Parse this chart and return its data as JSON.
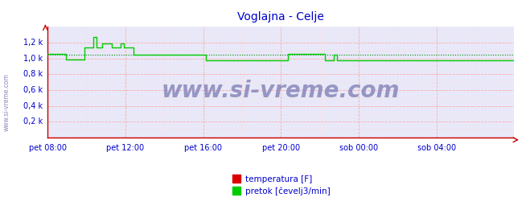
{
  "title": "Voglajna - Celje",
  "title_color": "#0000cc",
  "background_color": "#ffffff",
  "plot_bg_color": "#e8e8f8",
  "grid_color": "#ffaaaa",
  "grid_minor_color": "#ffdddd",
  "ylabel_color": "#0000cc",
  "xlabel_color": "#0000cc",
  "axis_color": "#cc0000",
  "ymin": 0,
  "ymax": 1.4,
  "yticks": [
    0.0,
    0.2,
    0.4,
    0.6,
    0.8,
    1.0,
    1.2
  ],
  "ytick_labels": [
    "",
    "0,2 k",
    "0,4 k",
    "0,6 k",
    "0,8 k",
    "1,0 k",
    "1,2 k"
  ],
  "xtick_labels": [
    "pet 08:00",
    "pet 12:00",
    "pet 16:00",
    "pet 20:00",
    "sob 00:00",
    "sob 04:00"
  ],
  "temp_color": "#dd0000",
  "flow_color": "#00cc00",
  "avg_line_color": "#008800",
  "avg_line_value": 1.045,
  "watermark": "www.si-vreme.com",
  "watermark_color": "#8888bb",
  "side_label": "www.si-vreme.com",
  "side_label_color": "#8888bb",
  "legend_temp_color": "#dd0000",
  "legend_flow_color": "#00cc00",
  "legend_temp_label": "temperatura [F]",
  "legend_flow_label": "pretok [čevelj3/min]",
  "flow_data": [
    1.055,
    1.055,
    1.055,
    1.055,
    1.055,
    1.055,
    1.055,
    1.055,
    1.055,
    1.055,
    0.99,
    0.99,
    0.99,
    0.99,
    0.99,
    0.99,
    0.99,
    0.99,
    0.99,
    0.99,
    1.14,
    1.14,
    1.14,
    1.14,
    1.14,
    1.27,
    1.27,
    1.14,
    1.14,
    1.14,
    1.19,
    1.19,
    1.19,
    1.19,
    1.19,
    1.14,
    1.14,
    1.14,
    1.14,
    1.14,
    1.19,
    1.19,
    1.14,
    1.14,
    1.14,
    1.14,
    1.14,
    1.05,
    1.05,
    1.05,
    1.05,
    1.05,
    1.05,
    1.05,
    1.05,
    1.05,
    1.05,
    1.05,
    1.05,
    1.05,
    1.05,
    1.05,
    1.05,
    1.05,
    1.05,
    1.05,
    1.05,
    1.05,
    1.05,
    1.05,
    1.05,
    1.05,
    1.05,
    1.05,
    1.05,
    1.05,
    1.05,
    1.05,
    1.05,
    1.05,
    1.05,
    1.05,
    1.05,
    1.05,
    1.05,
    1.05,
    1.05,
    0.98,
    0.98,
    0.98,
    0.98,
    0.98,
    0.98,
    0.98,
    0.98,
    0.98,
    0.98,
    0.98,
    0.98,
    0.98,
    0.98,
    0.98,
    0.98,
    0.98,
    0.98,
    0.98,
    0.98,
    0.98,
    0.98,
    0.98,
    0.98,
    0.98,
    0.98,
    0.98,
    0.98,
    0.98,
    0.98,
    0.98,
    0.98,
    0.98,
    0.98,
    0.98,
    0.98,
    0.98,
    0.98,
    0.98,
    0.98,
    0.98,
    0.98,
    0.98,
    0.98,
    0.98,
    1.055,
    1.055,
    1.055,
    1.055,
    1.055,
    1.055,
    1.055,
    1.055,
    1.055,
    1.055,
    1.055,
    1.055,
    1.055,
    1.055,
    1.055,
    1.055,
    1.055,
    1.055,
    1.055,
    1.055,
    0.98,
    0.98,
    0.98,
    0.98,
    0.98,
    1.05,
    1.05,
    0.98,
    0.98,
    0.98,
    0.98,
    0.98,
    0.98,
    0.98,
    0.98,
    0.98,
    0.98,
    0.98,
    0.98,
    0.98,
    0.98,
    0.98,
    0.98,
    0.98,
    0.98,
    0.98,
    0.98,
    0.98,
    0.98,
    0.98,
    0.98,
    0.98,
    0.98,
    0.98,
    0.98,
    0.98,
    0.98,
    0.98,
    0.98,
    0.98,
    0.98,
    0.98,
    0.98,
    0.98,
    0.98,
    0.98,
    0.98,
    0.98,
    0.98,
    0.98,
    0.98,
    0.98,
    0.98,
    0.98,
    0.98,
    0.98,
    0.98,
    0.98,
    0.98,
    0.98,
    0.98,
    0.98,
    0.98,
    0.98,
    0.98,
    0.98,
    0.98,
    0.98,
    0.98,
    0.98,
    0.98,
    0.98,
    0.98,
    0.98,
    0.98,
    0.98,
    0.98,
    0.98,
    0.98,
    0.98,
    0.98,
    0.98,
    0.98,
    0.98,
    0.98,
    0.98,
    0.98,
    0.98,
    0.98,
    0.98,
    0.98,
    0.98,
    0.98,
    0.98,
    0.98,
    0.98,
    0.98,
    0.98,
    0.98,
    0.98,
    0.98,
    0.98,
    0.98,
    0.98,
    0.98
  ]
}
